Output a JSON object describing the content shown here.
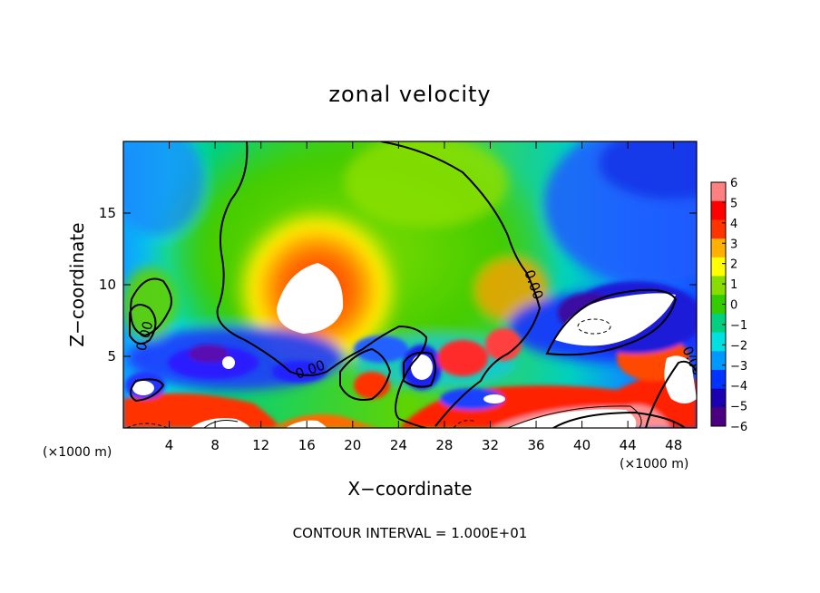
{
  "chart_data": {
    "type": "heatmap",
    "title": "zonal velocity",
    "xlabel": "X−coordinate",
    "ylabel": "Z−coordinate",
    "x_unit_left": "(×1000 m)",
    "x_unit_right": "(×1000 m)",
    "xlim": [
      0,
      50
    ],
    "ylim": [
      0,
      20
    ],
    "x_ticks": [
      4,
      8,
      12,
      16,
      20,
      24,
      28,
      32,
      36,
      40,
      44,
      48
    ],
    "y_ticks": [
      5,
      10,
      15
    ],
    "colorbar": {
      "min": -6,
      "max": 6,
      "ticks": [
        6,
        5,
        4,
        3,
        2,
        1,
        0,
        -1,
        -2,
        -3,
        -4,
        -5,
        -6
      ],
      "colors": [
        "#4b0082",
        "#1a00b0",
        "#0033ff",
        "#0099ff",
        "#00e0e0",
        "#00d080",
        "#33cc00",
        "#88dd00",
        "#ffff00",
        "#ffb000",
        "#ff3300",
        "#ff0000",
        "#ff8080"
      ]
    },
    "contour_labels": [
      "0.00",
      "0.00",
      "0.00",
      "0.00"
    ],
    "contour_interval_text": "CONTOUR INTERVAL = 1.000E+01",
    "grid": false,
    "features": [
      {
        "x": 18,
        "z": 9.5,
        "value": 6
      },
      {
        "x": 43,
        "z": 7,
        "value": 6
      },
      {
        "x": 48,
        "z": 2.5,
        "value": 6
      },
      {
        "x": 1.5,
        "z": 2.8,
        "value": 6
      },
      {
        "x": 9,
        "z": 5,
        "value": -6
      },
      {
        "x": 33,
        "z": 3,
        "value": 5
      },
      {
        "x": 22,
        "z": 3,
        "value": 5
      },
      {
        "x": 46,
        "z": 19,
        "value": -4
      }
    ]
  }
}
